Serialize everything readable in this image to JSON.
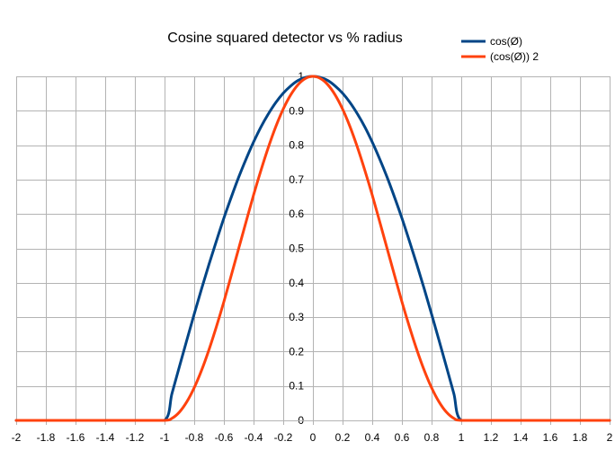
{
  "chart_data": {
    "type": "line",
    "title": "Cosine squared  detector vs % radius",
    "xlabel": "",
    "ylabel": "",
    "xlim": [
      -2,
      2
    ],
    "ylim": [
      0,
      1
    ],
    "x_ticks": [
      "-2",
      "-1.8",
      "-1.6",
      "-1.4",
      "-1.2",
      "-1",
      "-0.8",
      "-0.6",
      "-0.4",
      "-0.2",
      "0",
      "0.2",
      "0.4",
      "0.6",
      "0.8",
      "1",
      "1.2",
      "1.4",
      "1.6",
      "1.8",
      "2"
    ],
    "y_ticks": [
      "0",
      "0.1",
      "0.2",
      "0.3",
      "0.4",
      "0.5",
      "0.6",
      "0.7",
      "0.8",
      "0.9",
      "1"
    ],
    "grid": true,
    "legend_position": "top-right",
    "x": [
      -2,
      -1.8,
      -1.6,
      -1.4,
      -1.2,
      -1,
      -0.95,
      -0.9,
      -0.85,
      -0.8,
      -0.75,
      -0.7,
      -0.65,
      -0.6,
      -0.55,
      -0.5,
      -0.45,
      -0.4,
      -0.35,
      -0.3,
      -0.25,
      -0.2,
      -0.15,
      -0.1,
      -0.05,
      0,
      0.05,
      0.1,
      0.15,
      0.2,
      0.25,
      0.3,
      0.35,
      0.4,
      0.45,
      0.5,
      0.55,
      0.6,
      0.65,
      0.7,
      0.75,
      0.8,
      0.85,
      0.9,
      0.95,
      1,
      1.2,
      1.4,
      1.6,
      1.8,
      2
    ],
    "series": [
      {
        "name": "cos(Ø)",
        "color": "#004586",
        "values": [
          0,
          0,
          0,
          0,
          0,
          0,
          0.078,
          0.156,
          0.233,
          0.309,
          0.383,
          0.454,
          0.522,
          0.588,
          0.649,
          0.707,
          0.76,
          0.809,
          0.853,
          0.891,
          0.924,
          0.951,
          0.972,
          0.988,
          0.997,
          1,
          0.997,
          0.988,
          0.972,
          0.951,
          0.924,
          0.891,
          0.853,
          0.809,
          0.76,
          0.707,
          0.649,
          0.588,
          0.522,
          0.454,
          0.383,
          0.309,
          0.233,
          0.156,
          0.078,
          0,
          0,
          0,
          0,
          0,
          0
        ]
      },
      {
        "name": "(cos(Ø)) 2",
        "color": "#ff420e",
        "values": [
          0,
          0,
          0,
          0,
          0,
          0,
          0.006,
          0.024,
          0.054,
          0.095,
          0.146,
          0.206,
          0.273,
          0.345,
          0.422,
          0.5,
          0.578,
          0.655,
          0.727,
          0.794,
          0.854,
          0.905,
          0.946,
          0.976,
          0.994,
          1,
          0.994,
          0.976,
          0.946,
          0.905,
          0.854,
          0.794,
          0.727,
          0.655,
          0.578,
          0.5,
          0.422,
          0.345,
          0.273,
          0.206,
          0.146,
          0.095,
          0.054,
          0.024,
          0.006,
          0,
          0,
          0,
          0,
          0,
          0
        ]
      }
    ]
  }
}
